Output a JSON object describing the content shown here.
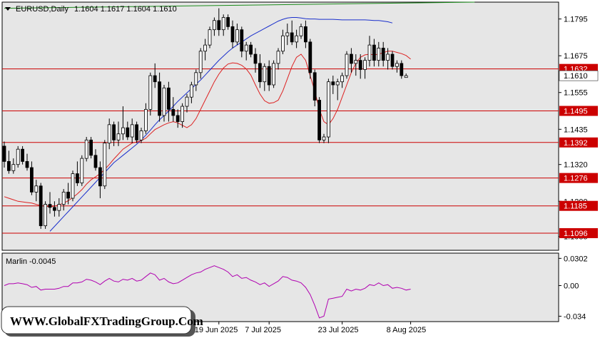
{
  "header": {
    "symbol": "EURUSD,Daily",
    "ohlc": "1.1604 1.1617 1.1604 1.1610"
  },
  "oscillator": {
    "label": "Marlin -0.0045"
  },
  "watermark": {
    "text": "WWW.GlobalFXTradingGroup.Com"
  },
  "colors": {
    "background": "#e6e6e6",
    "price_line": "#cc0000",
    "ma_fast": "#dd2222",
    "ma_slow": "#1a2fcc",
    "trendline": "#1a8a1a",
    "oscillator_line": "#b000b0",
    "candle_up": "#ffffff",
    "candle_down": "#000000"
  },
  "chart_data": {
    "type": "candlestick",
    "price_axis": {
      "ylim": [
        1.104,
        1.185
      ],
      "ticks": [
        1.1795,
        1.1675,
        1.1555,
        1.1435,
        1.132,
        1.12,
        1.1085
      ]
    },
    "oscillator_axis": {
      "ylim": [
        -0.04,
        0.036
      ],
      "ticks": [
        "0.0302",
        "0.00",
        "-0.034"
      ]
    },
    "x_labels": [
      "19 Jun 2025",
      "7 Jul 2025",
      "23 Jul 2025",
      "8 Aug 2025"
    ],
    "current_price": "1.1610",
    "horizontal_levels": [
      "1.1632",
      "1.1495",
      "1.1392",
      "1.1276",
      "1.1185",
      "1.1096"
    ],
    "candles": [
      [
        1.138,
        1.1395,
        1.131,
        1.133
      ],
      [
        1.133,
        1.1365,
        1.129,
        1.13
      ],
      [
        1.13,
        1.134,
        1.129,
        1.132
      ],
      [
        1.132,
        1.138,
        1.131,
        1.137
      ],
      [
        1.137,
        1.138,
        1.132,
        1.133
      ],
      [
        1.133,
        1.1355,
        1.13,
        1.131
      ],
      [
        1.131,
        1.133,
        1.122,
        1.123
      ],
      [
        1.123,
        1.127,
        1.12,
        1.125
      ],
      [
        1.125,
        1.126,
        1.111,
        1.112
      ],
      [
        1.112,
        1.12,
        1.111,
        1.119
      ],
      [
        1.119,
        1.123,
        1.116,
        1.118
      ],
      [
        1.118,
        1.12,
        1.115,
        1.117
      ],
      [
        1.117,
        1.121,
        1.115,
        1.119
      ],
      [
        1.119,
        1.124,
        1.117,
        1.123
      ],
      [
        1.123,
        1.126,
        1.119,
        1.121
      ],
      [
        1.121,
        1.13,
        1.12,
        1.129
      ],
      [
        1.129,
        1.133,
        1.125,
        1.126
      ],
      [
        1.126,
        1.135,
        1.125,
        1.134
      ],
      [
        1.134,
        1.141,
        1.133,
        1.14
      ],
      [
        1.14,
        1.141,
        1.134,
        1.135
      ],
      [
        1.135,
        1.137,
        1.13,
        1.131
      ],
      [
        1.131,
        1.133,
        1.121,
        1.125
      ],
      [
        1.125,
        1.14,
        1.124,
        1.139
      ],
      [
        1.139,
        1.147,
        1.137,
        1.145
      ],
      [
        1.145,
        1.146,
        1.138,
        1.14
      ],
      [
        1.14,
        1.146,
        1.138,
        1.142
      ],
      [
        1.142,
        1.151,
        1.14,
        1.144
      ],
      [
        1.144,
        1.146,
        1.14,
        1.141
      ],
      [
        1.141,
        1.147,
        1.139,
        1.145
      ],
      [
        1.145,
        1.146,
        1.139,
        1.14
      ],
      [
        1.14,
        1.144,
        1.139,
        1.143
      ],
      [
        1.143,
        1.152,
        1.142,
        1.15
      ],
      [
        1.15,
        1.162,
        1.148,
        1.161
      ],
      [
        1.161,
        1.165,
        1.157,
        1.159
      ],
      [
        1.159,
        1.162,
        1.146,
        1.148
      ],
      [
        1.148,
        1.158,
        1.146,
        1.157
      ],
      [
        1.157,
        1.159,
        1.146,
        1.15
      ],
      [
        1.15,
        1.154,
        1.146,
        1.148
      ],
      [
        1.148,
        1.15,
        1.144,
        1.146
      ],
      [
        1.146,
        1.152,
        1.144,
        1.151
      ],
      [
        1.151,
        1.155,
        1.149,
        1.154
      ],
      [
        1.154,
        1.159,
        1.152,
        1.158
      ],
      [
        1.158,
        1.163,
        1.156,
        1.162
      ],
      [
        1.162,
        1.17,
        1.16,
        1.169
      ],
      [
        1.169,
        1.173,
        1.166,
        1.171
      ],
      [
        1.171,
        1.177,
        1.17,
        1.176
      ],
      [
        1.176,
        1.18,
        1.174,
        1.179
      ],
      [
        1.179,
        1.183,
        1.174,
        1.176
      ],
      [
        1.176,
        1.181,
        1.174,
        1.18
      ],
      [
        1.18,
        1.181,
        1.176,
        1.177
      ],
      [
        1.177,
        1.179,
        1.17,
        1.172
      ],
      [
        1.172,
        1.178,
        1.171,
        1.176
      ],
      [
        1.176,
        1.177,
        1.167,
        1.169
      ],
      [
        1.169,
        1.172,
        1.166,
        1.171
      ],
      [
        1.171,
        1.172,
        1.167,
        1.168
      ],
      [
        1.168,
        1.17,
        1.162,
        1.165
      ],
      [
        1.165,
        1.168,
        1.157,
        1.159
      ],
      [
        1.159,
        1.165,
        1.156,
        1.164
      ],
      [
        1.164,
        1.166,
        1.156,
        1.158
      ],
      [
        1.158,
        1.166,
        1.157,
        1.165
      ],
      [
        1.165,
        1.17,
        1.163,
        1.169
      ],
      [
        1.169,
        1.176,
        1.168,
        1.174
      ],
      [
        1.174,
        1.178,
        1.171,
        1.175
      ],
      [
        1.175,
        1.179,
        1.171,
        1.172
      ],
      [
        1.172,
        1.176,
        1.17,
        1.174
      ],
      [
        1.174,
        1.178,
        1.173,
        1.177
      ],
      [
        1.177,
        1.179,
        1.17,
        1.172
      ],
      [
        1.172,
        1.173,
        1.16,
        1.162
      ],
      [
        1.162,
        1.163,
        1.151,
        1.153
      ],
      [
        1.153,
        1.154,
        1.139,
        1.14
      ],
      [
        1.14,
        1.142,
        1.139,
        1.141
      ],
      [
        1.141,
        1.16,
        1.139,
        1.159
      ],
      [
        1.159,
        1.161,
        1.155,
        1.158
      ],
      [
        1.158,
        1.16,
        1.153,
        1.159
      ],
      [
        1.159,
        1.162,
        1.157,
        1.161
      ],
      [
        1.161,
        1.169,
        1.16,
        1.168
      ],
      [
        1.168,
        1.17,
        1.162,
        1.165
      ],
      [
        1.165,
        1.168,
        1.161,
        1.166
      ],
      [
        1.166,
        1.168,
        1.16,
        1.163
      ],
      [
        1.163,
        1.167,
        1.16,
        1.166
      ],
      [
        1.166,
        1.174,
        1.164,
        1.171
      ],
      [
        1.171,
        1.173,
        1.164,
        1.166
      ],
      [
        1.166,
        1.172,
        1.164,
        1.17
      ],
      [
        1.17,
        1.172,
        1.164,
        1.166
      ],
      [
        1.166,
        1.17,
        1.163,
        1.168
      ],
      [
        1.168,
        1.169,
        1.163,
        1.164
      ],
      [
        1.164,
        1.166,
        1.162,
        1.165
      ],
      [
        1.165,
        1.166,
        1.16,
        1.161
      ],
      [
        1.1604,
        1.1617,
        1.1604,
        1.161
      ]
    ],
    "ma_fast": [
      1.1215,
      1.121,
      1.1205,
      1.12,
      1.1198,
      1.1196,
      1.1194,
      1.119,
      1.1186,
      1.1184,
      1.1182,
      1.1184,
      1.1188,
      1.1194,
      1.1202,
      1.1212,
      1.1224,
      1.1238,
      1.1256,
      1.127,
      1.128,
      1.129,
      1.1304,
      1.132,
      1.1338,
      1.1354,
      1.137,
      1.138,
      1.139,
      1.1394,
      1.1398,
      1.1406,
      1.142,
      1.1434,
      1.1442,
      1.145,
      1.1456,
      1.146,
      1.1456,
      1.1448,
      1.144,
      1.145,
      1.147,
      1.15,
      1.153,
      1.156,
      1.159,
      1.1615,
      1.1635,
      1.1648,
      1.1652,
      1.165,
      1.1644,
      1.1632,
      1.1612,
      1.158,
      1.155,
      1.1528,
      1.152,
      1.1522,
      1.153,
      1.156,
      1.16,
      1.164,
      1.167,
      1.168,
      1.166,
      1.161,
      1.156,
      1.15,
      1.146,
      1.145,
      1.147,
      1.15,
      1.154,
      1.158,
      1.162,
      1.165,
      1.167,
      1.1678,
      1.168,
      1.1678,
      1.168,
      1.1685,
      1.169,
      1.169,
      1.1686,
      1.1682,
      1.1676,
      1.1664
    ],
    "ma_slow": [
      null,
      null,
      null,
      null,
      null,
      null,
      null,
      null,
      null,
      null,
      1.1102,
      1.1118,
      1.1134,
      1.115,
      1.1166,
      1.1182,
      1.1198,
      1.1214,
      1.123,
      1.1246,
      1.1262,
      1.1278,
      1.1294,
      1.131,
      1.1326,
      1.1338,
      1.135,
      1.1362,
      1.1374,
      1.1386,
      1.14,
      1.1416,
      1.1432,
      1.145,
      1.1466,
      1.148,
      1.1494,
      1.151,
      1.1526,
      1.154,
      1.1554,
      1.1568,
      1.1582,
      1.1596,
      1.1612,
      1.1628,
      1.1644,
      1.166,
      1.1674,
      1.1688,
      1.17,
      1.171,
      1.172,
      1.173,
      1.174,
      1.1748,
      1.1756,
      1.1764,
      1.1772,
      1.178,
      1.1788,
      1.1794,
      1.1798,
      1.18,
      1.18,
      1.1798,
      1.1796,
      1.1795,
      1.1795,
      1.1794,
      1.1794,
      1.1794,
      1.1794,
      1.1793,
      1.1792,
      1.1792,
      1.1792,
      1.1792,
      1.1792,
      1.1792,
      1.1791,
      1.179,
      1.179,
      1.1788,
      1.1786,
      1.1782
    ],
    "trendline": [
      [
        0,
        1.183
      ],
      [
        103,
        1.19
      ]
    ],
    "oscillator": [
      0.0,
      0.002,
      0.002,
      0.003,
      0.002,
      0.001,
      -0.002,
      -0.001,
      -0.005,
      -0.004,
      -0.004,
      -0.004,
      -0.003,
      -0.001,
      -0.001,
      0.003,
      0.003,
      0.004,
      0.007,
      0.006,
      0.004,
      0.001,
      0.005,
      0.008,
      0.005,
      0.004,
      0.007,
      0.006,
      0.008,
      0.005,
      0.006,
      0.01,
      0.014,
      0.012,
      0.006,
      0.008,
      0.004,
      0.002,
      0.003,
      0.006,
      0.009,
      0.012,
      0.014,
      0.015,
      0.018,
      0.02,
      0.022,
      0.02,
      0.018,
      0.015,
      0.01,
      0.012,
      0.008,
      0.009,
      0.006,
      0.004,
      0.001,
      0.003,
      -0.001,
      0.002,
      0.005,
      0.01,
      0.009,
      0.006,
      0.005,
      0.003,
      -0.002,
      -0.01,
      -0.022,
      -0.036,
      -0.034,
      -0.015,
      -0.014,
      -0.013,
      -0.012,
      -0.004,
      -0.006,
      -0.004,
      -0.005,
      -0.003,
      0.001,
      0.0,
      0.003,
      0.0,
      0.001,
      -0.003,
      -0.002,
      -0.003,
      -0.005,
      -0.004
    ]
  }
}
